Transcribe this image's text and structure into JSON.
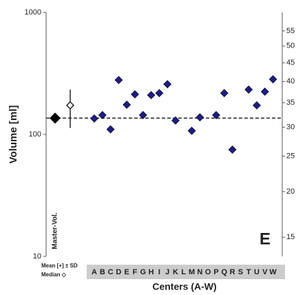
{
  "chart_data": {
    "type": "scatter",
    "ylabel": "Volume [ml]",
    "xlabel": "Centers (A-W)",
    "panel_label": "E",
    "log_y": true,
    "ylim": [
      10,
      1000
    ],
    "yticks": [
      10,
      100,
      1000
    ],
    "log_y2": true,
    "y2lim": [
      13.3,
      61.8
    ],
    "y2ticks": [
      15,
      20,
      25,
      30,
      35,
      40,
      45,
      50,
      55
    ],
    "categories": [
      "A",
      "B",
      "C",
      "D",
      "E",
      "F",
      "G",
      "H",
      "I",
      "J",
      "K",
      "L",
      "M",
      "N",
      "O",
      "P",
      "Q",
      "R",
      "S",
      "T",
      "U",
      "V",
      "W"
    ],
    "category_colors": [
      "#3aa83a",
      "#3aa83a",
      "#3aa83a",
      "#d8333a",
      "#d8333a",
      "#d8333a",
      "#d8333a",
      "#d8333a",
      "#d8333a",
      "#d8333a",
      "#d8333a",
      "#d8333a",
      "#e8d23a",
      "#e8d23a",
      "#e8d23a",
      "#d8333a",
      "#d8333a",
      "#d8333a",
      "#d8333a",
      "#3aa83a",
      "#e8d23a",
      "#3aa83a",
      "#e8d23a"
    ],
    "series": [
      {
        "name": "Centers",
        "color": "#1c1c8a",
        "values": [
          135,
          144,
          110,
          279,
          175,
          213,
          144,
          210,
          218,
          258,
          130,
          null,
          107,
          138,
          null,
          144,
          218,
          75,
          null,
          233,
          173,
          224,
          283
        ]
      }
    ],
    "master": {
      "label": "Master-Vol.",
      "value": 136
    },
    "summary": {
      "mean_label": "Mean [+] ± SD",
      "median_label": "Median ◇",
      "value": 173,
      "error": 60
    }
  }
}
